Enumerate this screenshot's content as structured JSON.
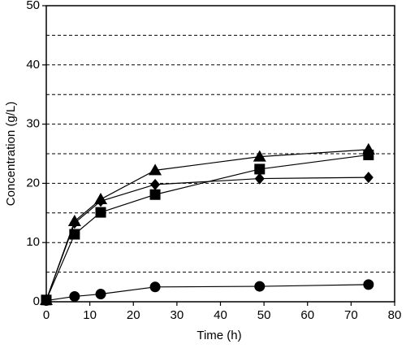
{
  "chart_data": {
    "type": "line",
    "x_label": "Time (h)",
    "y_label": "Concentration (g/L)",
    "xlim": [
      0,
      80
    ],
    "xticks": [
      0,
      10,
      20,
      30,
      40,
      50,
      60,
      70,
      80
    ],
    "ylim": [
      0,
      50
    ],
    "yticks": [
      0,
      10,
      20,
      30,
      40,
      50
    ],
    "y_minor_ticks": [
      5,
      15,
      25,
      35,
      45
    ],
    "grid": true,
    "x": [
      0,
      6.5,
      12.5,
      25,
      49,
      74
    ],
    "series": [
      {
        "marker": "triangle",
        "color": "#000000",
        "values": [
          0.3,
          13.6,
          17.3,
          22.2,
          24.5,
          25.7
        ]
      },
      {
        "marker": "diamond",
        "color": "#000000",
        "values": [
          0.3,
          13.3,
          17.0,
          19.8,
          20.8,
          21.0
        ]
      },
      {
        "marker": "square",
        "color": "#000000",
        "values": [
          0.3,
          11.4,
          15.1,
          18.1,
          22.4,
          24.8
        ]
      },
      {
        "marker": "circle",
        "color": "#000000",
        "values": [
          0.2,
          0.9,
          1.3,
          2.5,
          2.6,
          2.9
        ]
      }
    ]
  }
}
